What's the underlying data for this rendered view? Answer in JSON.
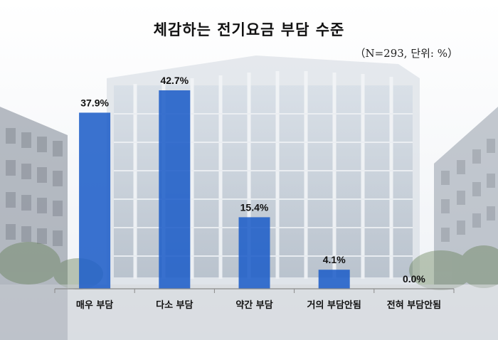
{
  "chart_data": {
    "type": "bar",
    "title": "체감하는 전기요금 부담 수준",
    "note": "（N=293, 단위: %）",
    "categories": [
      "매우 부담",
      "다소 부담",
      "약간 부담",
      "거의 부담안됨",
      "전혀 부담안됨"
    ],
    "values": [
      37.9,
      42.7,
      15.4,
      4.1,
      0.0
    ],
    "value_labels": [
      "37.9%",
      "42.7%",
      "15.4%",
      "4.1%",
      "0.0%"
    ],
    "ylim": [
      0,
      42.7
    ],
    "xlabel": "",
    "ylabel": "",
    "grid": false,
    "bar_color": "#1f5fc8",
    "background": "photo of office building (semi-transparent, faded)"
  }
}
